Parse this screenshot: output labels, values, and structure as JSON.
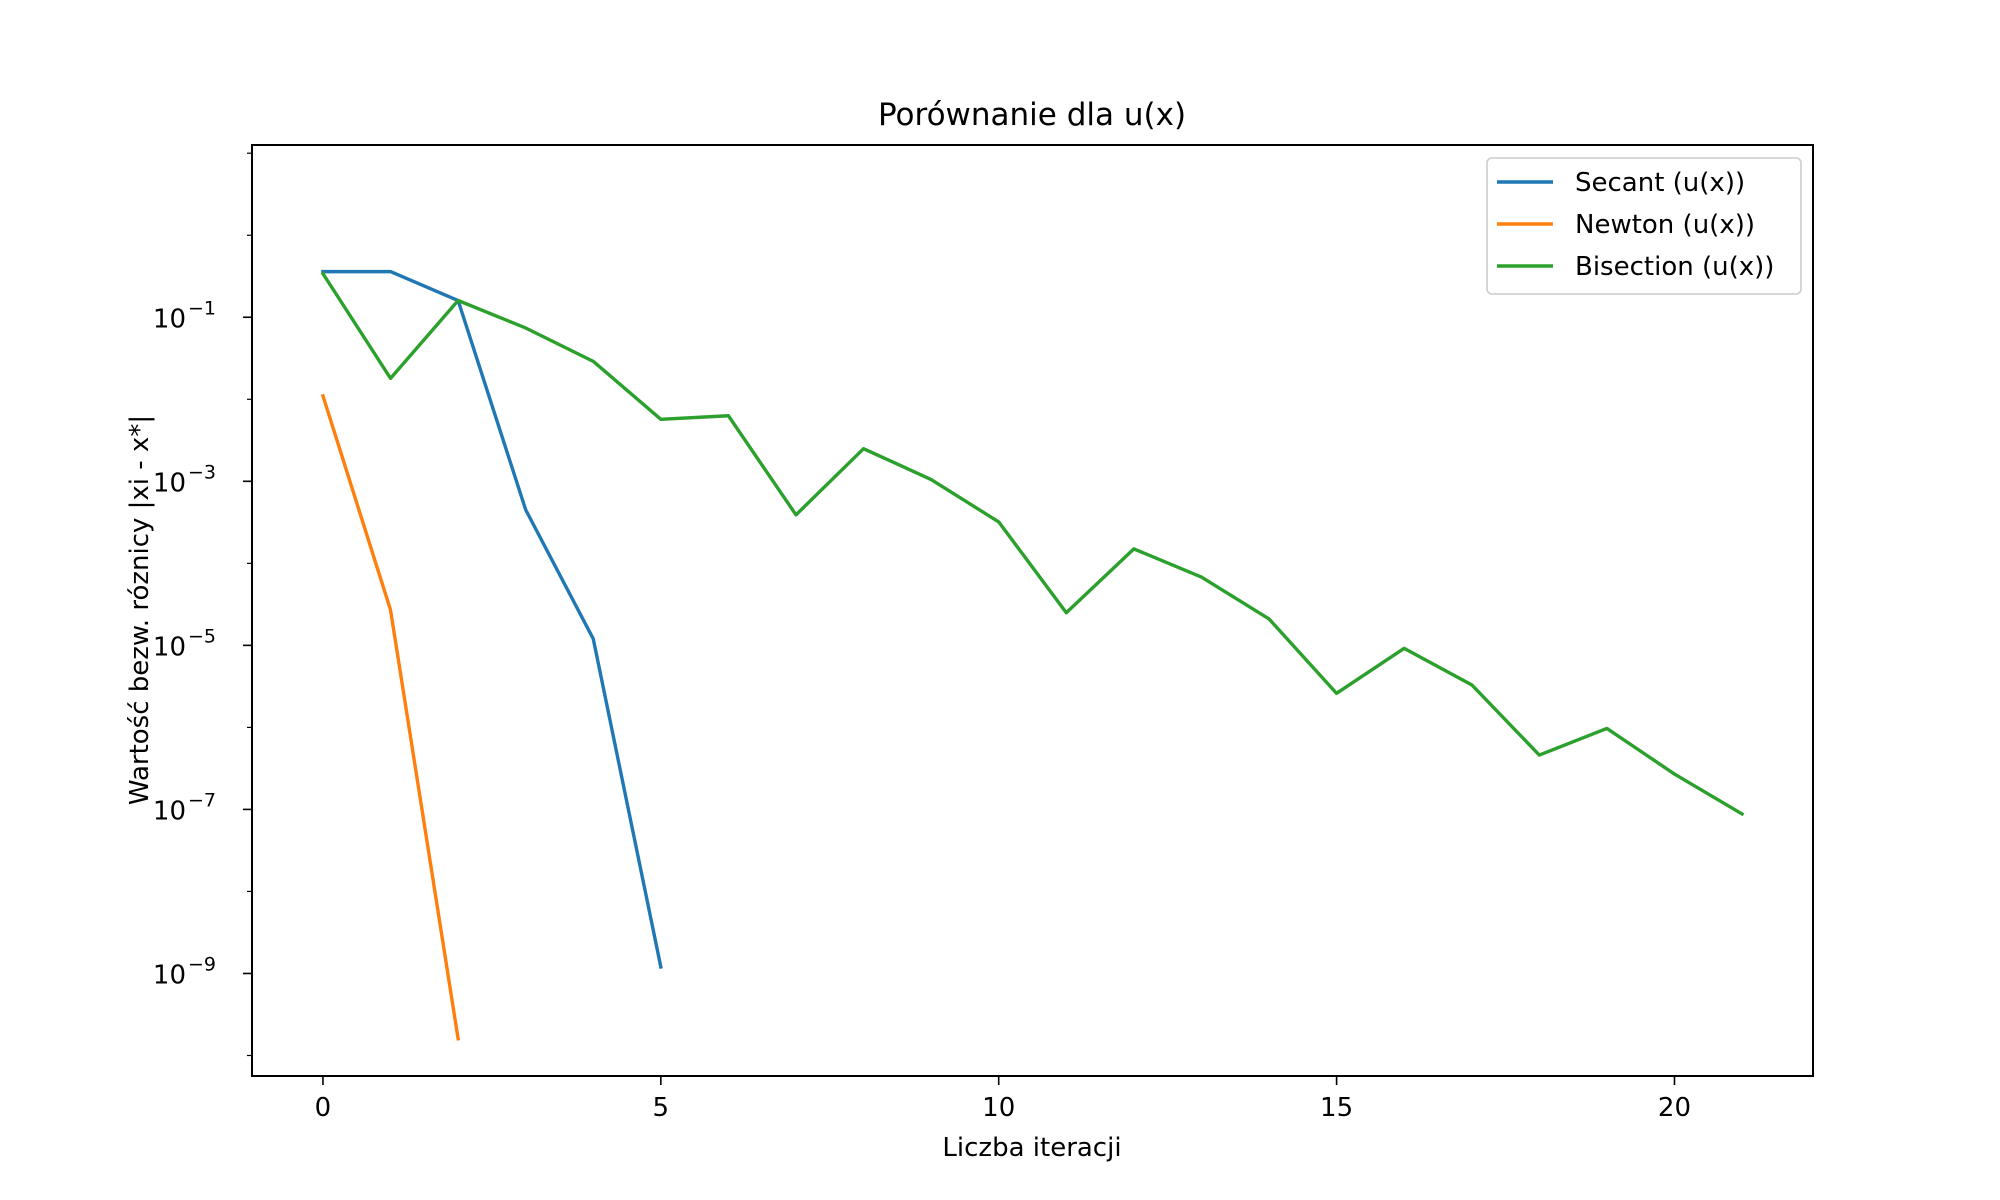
{
  "chart_data": {
    "type": "line",
    "title": "Porównanie dla u(x)",
    "xlabel": "Liczba iteracji",
    "ylabel": "Wartość bezw. róznicy |xi - x*|",
    "yscale": "log",
    "xlim": [
      -1.05,
      22.05
    ],
    "ylim_exp": [
      -10.25,
      1.1
    ],
    "xticks": [
      0,
      5,
      10,
      15,
      20
    ],
    "xtick_labels": [
      "0",
      "5",
      "10",
      "15",
      "20"
    ],
    "yticks_exp": [
      -9,
      -7,
      -5,
      -3,
      -1
    ],
    "ytick_base": "10",
    "ytick_exponents": [
      "−9",
      "−7",
      "−5",
      "−3",
      "−1"
    ],
    "grid": false,
    "legend_position": "top-right",
    "series": [
      {
        "name": "Secant (u(x))",
        "color": "#1f77b4",
        "x": [
          0,
          1,
          2,
          3,
          4,
          5
        ],
        "y": [
          0.36,
          0.36,
          0.16,
          0.00045,
          1.2e-05,
          1.2e-09
        ]
      },
      {
        "name": "Newton (u(x))",
        "color": "#ff7f0e",
        "x": [
          0,
          1,
          2
        ],
        "y": [
          0.011,
          2.7e-05,
          1.6e-10
        ]
      },
      {
        "name": "Bisection (u(x))",
        "color": "#2ca02c",
        "x": [
          0,
          1,
          2,
          3,
          4,
          5,
          6,
          7,
          8,
          9,
          10,
          11,
          12,
          13,
          14,
          15,
          16,
          17,
          18,
          19,
          20,
          21
        ],
        "y": [
          0.34,
          0.018,
          0.16,
          0.074,
          0.029,
          0.0057,
          0.0063,
          0.00039,
          0.0025,
          0.00105,
          0.00032,
          2.5e-05,
          0.00015,
          6.8e-05,
          2.1e-05,
          2.6e-06,
          9.2e-06,
          3.3e-06,
          4.6e-07,
          9.7e-07,
          2.7e-07,
          8.8e-08
        ]
      }
    ]
  }
}
